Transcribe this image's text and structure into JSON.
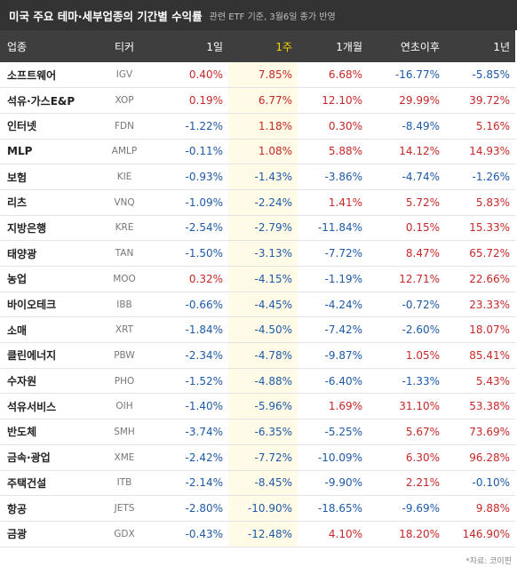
{
  "header": {
    "title": "미국 주요 테마·세부업종의 기간별 수익률",
    "subtitle": "관련 ETF 기준, 3월6일 종가 반영"
  },
  "columns": [
    "업종",
    "티커",
    "1일",
    "1주",
    "1개월",
    "연초이후",
    "1년"
  ],
  "rows": [
    {
      "name": "소프트웨어",
      "ticker": "IGV",
      "d1": "0.40%",
      "w1": "7.85%",
      "m1": "6.68%",
      "ytd": "-16.77%",
      "y1": "-5.85%"
    },
    {
      "name": "석유·가스E&P",
      "ticker": "XOP",
      "d1": "0.19%",
      "w1": "6.77%",
      "m1": "12.10%",
      "ytd": "29.99%",
      "y1": "39.72%"
    },
    {
      "name": "인터넷",
      "ticker": "FDN",
      "d1": "-1.22%",
      "w1": "1.18%",
      "m1": "0.30%",
      "ytd": "-8.49%",
      "y1": "5.16%"
    },
    {
      "name": "MLP",
      "ticker": "AMLP",
      "d1": "-0.11%",
      "w1": "1.08%",
      "m1": "5.88%",
      "ytd": "14.12%",
      "y1": "14.93%"
    },
    {
      "name": "보험",
      "ticker": "KIE",
      "d1": "-0.93%",
      "w1": "-1.43%",
      "m1": "-3.86%",
      "ytd": "-4.74%",
      "y1": "-1.26%"
    },
    {
      "name": "리츠",
      "ticker": "VNQ",
      "d1": "-1.09%",
      "w1": "-2.24%",
      "m1": "1.41%",
      "ytd": "5.72%",
      "y1": "5.83%"
    },
    {
      "name": "지방은행",
      "ticker": "KRE",
      "d1": "-2.54%",
      "w1": "-2.79%",
      "m1": "-11.84%",
      "ytd": "0.15%",
      "y1": "15.33%"
    },
    {
      "name": "태양광",
      "ticker": "TAN",
      "d1": "-1.50%",
      "w1": "-3.13%",
      "m1": "-7.72%",
      "ytd": "8.47%",
      "y1": "65.72%"
    },
    {
      "name": "농업",
      "ticker": "MOO",
      "d1": "0.32%",
      "w1": "-4.15%",
      "m1": "-1.19%",
      "ytd": "12.71%",
      "y1": "22.66%"
    },
    {
      "name": "바이오테크",
      "ticker": "IBB",
      "d1": "-0.66%",
      "w1": "-4.45%",
      "m1": "-4.24%",
      "ytd": "-0.72%",
      "y1": "23.33%"
    },
    {
      "name": "소매",
      "ticker": "XRT",
      "d1": "-1.84%",
      "w1": "-4.50%",
      "m1": "-7.42%",
      "ytd": "-2.60%",
      "y1": "18.07%"
    },
    {
      "name": "클린에너지",
      "ticker": "PBW",
      "d1": "-2.34%",
      "w1": "-4.78%",
      "m1": "-9.87%",
      "ytd": "1.05%",
      "y1": "85.41%"
    },
    {
      "name": "수자원",
      "ticker": "PHO",
      "d1": "-1.52%",
      "w1": "-4.88%",
      "m1": "-6.40%",
      "ytd": "-1.33%",
      "y1": "5.43%"
    },
    {
      "name": "석유서비스",
      "ticker": "OIH",
      "d1": "-1.40%",
      "w1": "-5.96%",
      "m1": "1.69%",
      "ytd": "31.10%",
      "y1": "53.38%"
    },
    {
      "name": "반도체",
      "ticker": "SMH",
      "d1": "-3.74%",
      "w1": "-6.35%",
      "m1": "-5.25%",
      "ytd": "5.67%",
      "y1": "73.69%"
    },
    {
      "name": "금속·광업",
      "ticker": "XME",
      "d1": "-2.42%",
      "w1": "-7.72%",
      "m1": "-10.09%",
      "ytd": "6.30%",
      "y1": "96.28%"
    },
    {
      "name": "주택건설",
      "ticker": "ITB",
      "d1": "-2.14%",
      "w1": "-8.45%",
      "m1": "-9.90%",
      "ytd": "2.21%",
      "y1": "-0.10%"
    },
    {
      "name": "항공",
      "ticker": "JETS",
      "d1": "-2.80%",
      "w1": "-10.90%",
      "m1": "-18.65%",
      "ytd": "-9.69%",
      "y1": "9.88%"
    },
    {
      "name": "금광",
      "ticker": "GDX",
      "d1": "-0.43%",
      "w1": "-12.48%",
      "m1": "4.10%",
      "ytd": "18.20%",
      "y1": "146.90%"
    }
  ],
  "source": "*자료: 코이핀",
  "colors": {
    "positive": "#c62828",
    "negative": "#1e5aa8",
    "highlight_header": "#ffd400",
    "highlight_cell": "#fffbe6"
  }
}
